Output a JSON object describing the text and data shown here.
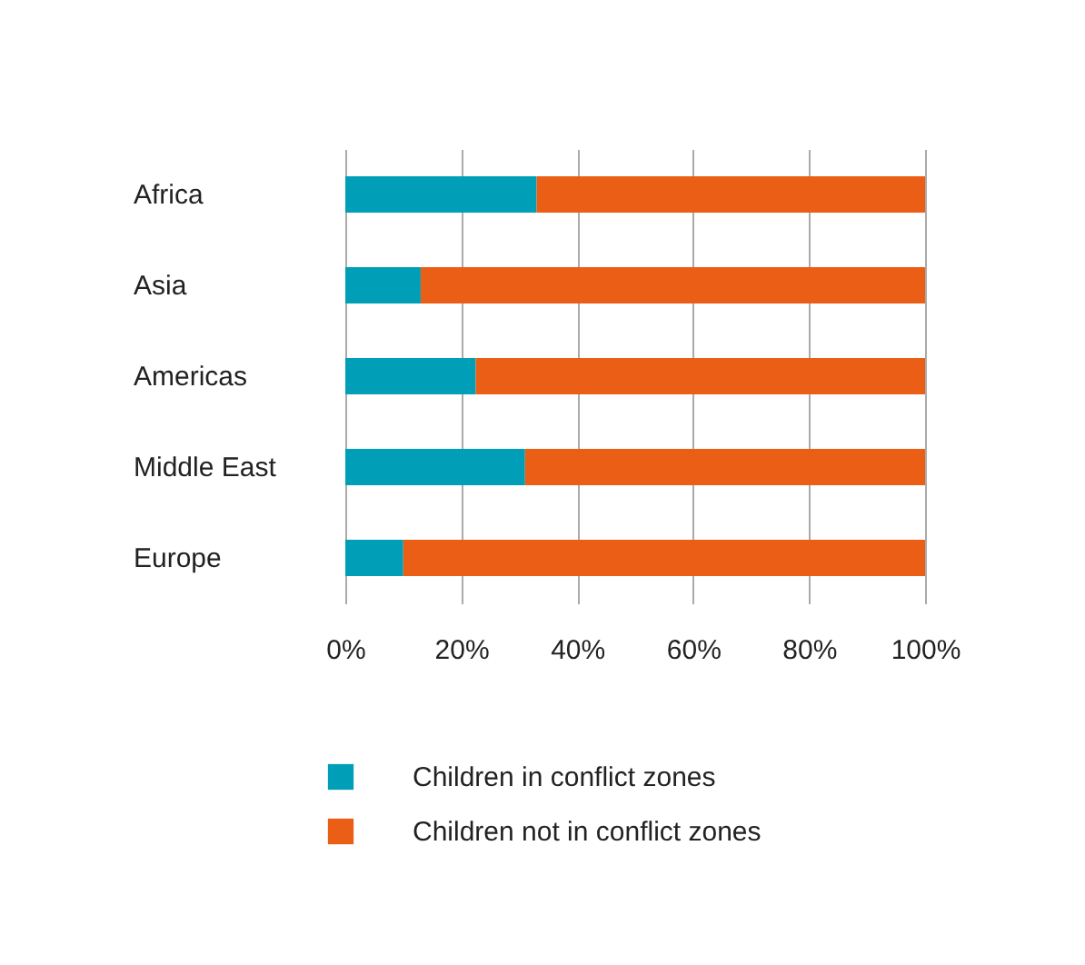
{
  "chart_data": {
    "type": "bar",
    "orientation": "horizontal",
    "stacked": true,
    "categories": [
      "Africa",
      "Asia",
      "Americas",
      "Middle East",
      "Europe"
    ],
    "series": [
      {
        "name": "Children in conflict zones",
        "color": "#009fb7",
        "values": [
          33,
          13,
          22.5,
          31,
          10
        ]
      },
      {
        "name": "Children not in conflict zones",
        "color": "#eb5e15",
        "values": [
          67,
          87,
          77.5,
          69,
          90
        ]
      }
    ],
    "xlim": [
      0,
      100
    ],
    "xticks": [
      {
        "value": 0,
        "label": "0%"
      },
      {
        "value": 20,
        "label": "20%"
      },
      {
        "value": 40,
        "label": "40%"
      },
      {
        "value": 60,
        "label": "60%"
      },
      {
        "value": 80,
        "label": "80%"
      },
      {
        "value": 100,
        "label": "100%"
      }
    ],
    "grid": "x",
    "legend": "bottom"
  }
}
